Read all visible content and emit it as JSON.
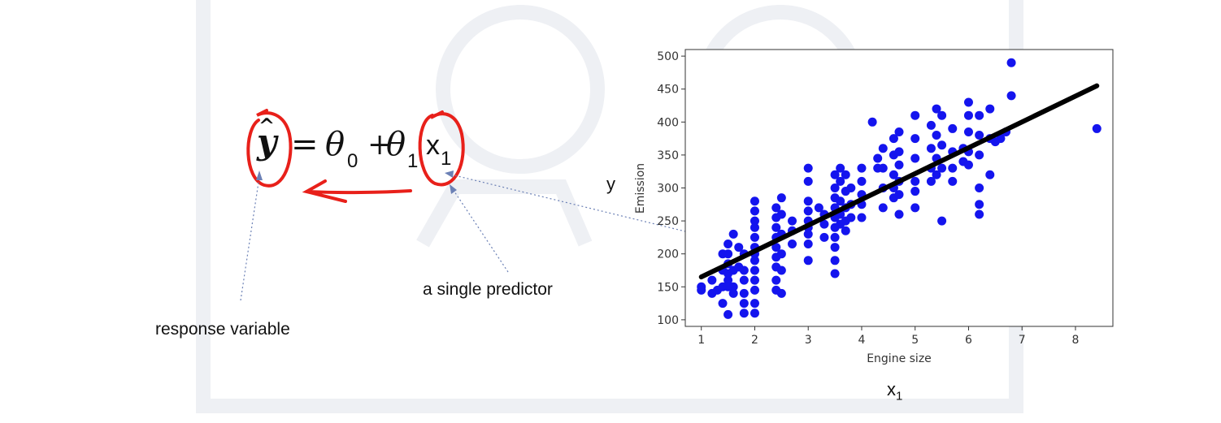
{
  "equation": {
    "lhs": "y",
    "equals": "=",
    "theta0": "θ",
    "theta0_sub": "0",
    "plus": "+",
    "theta1": "θ",
    "theta1_sub": "1",
    "x": "x",
    "x_sub": "1"
  },
  "annotations": {
    "response_variable": "response variable",
    "single_predictor": "a single predictor",
    "y_label": "y",
    "x_label": "x",
    "x_label_sub": "1"
  },
  "colors": {
    "marker_red": "#e8201a",
    "arrow_blue": "#6b80b5",
    "points": "#1414ee",
    "fit_line": "#000000",
    "watermark": "#eef0f4"
  },
  "chart_data": {
    "type": "scatter",
    "xlabel": "Engine size",
    "ylabel": "Emission",
    "xlim": [
      0.7,
      8.7
    ],
    "ylim": [
      90,
      510
    ],
    "xticks": [
      1,
      2,
      3,
      4,
      5,
      6,
      7,
      8
    ],
    "yticks": [
      100,
      150,
      200,
      250,
      300,
      350,
      400,
      450,
      500
    ],
    "points": [
      [
        1.0,
        150
      ],
      [
        1.0,
        145
      ],
      [
        1.2,
        160
      ],
      [
        1.2,
        140
      ],
      [
        1.3,
        145
      ],
      [
        1.4,
        175
      ],
      [
        1.4,
        150
      ],
      [
        1.4,
        125
      ],
      [
        1.4,
        200
      ],
      [
        1.5,
        200
      ],
      [
        1.5,
        185
      ],
      [
        1.5,
        170
      ],
      [
        1.5,
        160
      ],
      [
        1.5,
        150
      ],
      [
        1.5,
        108
      ],
      [
        1.5,
        215
      ],
      [
        1.6,
        175
      ],
      [
        1.6,
        150
      ],
      [
        1.6,
        230
      ],
      [
        1.6,
        140
      ],
      [
        1.7,
        180
      ],
      [
        1.7,
        210
      ],
      [
        1.8,
        200
      ],
      [
        1.8,
        175
      ],
      [
        1.8,
        160
      ],
      [
        1.8,
        140
      ],
      [
        1.8,
        125
      ],
      [
        1.8,
        110
      ],
      [
        2.0,
        280
      ],
      [
        2.0,
        265
      ],
      [
        2.0,
        250
      ],
      [
        2.0,
        240
      ],
      [
        2.0,
        225
      ],
      [
        2.0,
        210
      ],
      [
        2.0,
        200
      ],
      [
        2.0,
        190
      ],
      [
        2.0,
        175
      ],
      [
        2.0,
        160
      ],
      [
        2.0,
        145
      ],
      [
        2.0,
        125
      ],
      [
        2.0,
        110
      ],
      [
        2.4,
        270
      ],
      [
        2.4,
        255
      ],
      [
        2.4,
        240
      ],
      [
        2.4,
        225
      ],
      [
        2.4,
        210
      ],
      [
        2.4,
        195
      ],
      [
        2.4,
        180
      ],
      [
        2.4,
        160
      ],
      [
        2.4,
        145
      ],
      [
        2.5,
        285
      ],
      [
        2.5,
        260
      ],
      [
        2.5,
        230
      ],
      [
        2.5,
        200
      ],
      [
        2.5,
        175
      ],
      [
        2.5,
        140
      ],
      [
        2.7,
        250
      ],
      [
        2.7,
        235
      ],
      [
        2.7,
        215
      ],
      [
        3.0,
        330
      ],
      [
        3.0,
        310
      ],
      [
        3.0,
        280
      ],
      [
        3.0,
        265
      ],
      [
        3.0,
        250
      ],
      [
        3.0,
        240
      ],
      [
        3.0,
        230
      ],
      [
        3.0,
        215
      ],
      [
        3.0,
        190
      ],
      [
        3.2,
        270
      ],
      [
        3.3,
        260
      ],
      [
        3.3,
        245
      ],
      [
        3.3,
        225
      ],
      [
        3.5,
        320
      ],
      [
        3.5,
        300
      ],
      [
        3.5,
        285
      ],
      [
        3.5,
        270
      ],
      [
        3.5,
        255
      ],
      [
        3.5,
        240
      ],
      [
        3.5,
        225
      ],
      [
        3.5,
        210
      ],
      [
        3.5,
        190
      ],
      [
        3.5,
        170
      ],
      [
        3.6,
        330
      ],
      [
        3.6,
        310
      ],
      [
        3.6,
        280
      ],
      [
        3.6,
        260
      ],
      [
        3.6,
        245
      ],
      [
        3.7,
        320
      ],
      [
        3.7,
        295
      ],
      [
        3.7,
        270
      ],
      [
        3.7,
        250
      ],
      [
        3.7,
        235
      ],
      [
        3.8,
        300
      ],
      [
        3.8,
        275
      ],
      [
        3.8,
        255
      ],
      [
        4.0,
        330
      ],
      [
        4.0,
        310
      ],
      [
        4.0,
        290
      ],
      [
        4.0,
        275
      ],
      [
        4.0,
        255
      ],
      [
        4.2,
        400
      ],
      [
        4.3,
        345
      ],
      [
        4.3,
        330
      ],
      [
        4.4,
        360
      ],
      [
        4.4,
        330
      ],
      [
        4.4,
        300
      ],
      [
        4.4,
        270
      ],
      [
        4.6,
        375
      ],
      [
        4.6,
        350
      ],
      [
        4.6,
        320
      ],
      [
        4.6,
        300
      ],
      [
        4.6,
        285
      ],
      [
        4.7,
        385
      ],
      [
        4.7,
        355
      ],
      [
        4.7,
        335
      ],
      [
        4.7,
        310
      ],
      [
        4.7,
        290
      ],
      [
        4.7,
        260
      ],
      [
        5.0,
        410
      ],
      [
        5.0,
        375
      ],
      [
        5.0,
        345
      ],
      [
        5.0,
        310
      ],
      [
        5.0,
        295
      ],
      [
        5.0,
        270
      ],
      [
        5.3,
        395
      ],
      [
        5.3,
        360
      ],
      [
        5.3,
        330
      ],
      [
        5.3,
        310
      ],
      [
        5.4,
        420
      ],
      [
        5.4,
        380
      ],
      [
        5.4,
        345
      ],
      [
        5.4,
        320
      ],
      [
        5.5,
        410
      ],
      [
        5.5,
        365
      ],
      [
        5.5,
        330
      ],
      [
        5.5,
        250
      ],
      [
        5.7,
        390
      ],
      [
        5.7,
        355
      ],
      [
        5.7,
        330
      ],
      [
        5.7,
        310
      ],
      [
        5.9,
        360
      ],
      [
        5.9,
        340
      ],
      [
        6.0,
        430
      ],
      [
        6.0,
        410
      ],
      [
        6.0,
        385
      ],
      [
        6.0,
        355
      ],
      [
        6.0,
        335
      ],
      [
        6.2,
        410
      ],
      [
        6.2,
        380
      ],
      [
        6.2,
        350
      ],
      [
        6.2,
        300
      ],
      [
        6.2,
        275
      ],
      [
        6.2,
        260
      ],
      [
        6.4,
        420
      ],
      [
        6.4,
        375
      ],
      [
        6.4,
        320
      ],
      [
        6.5,
        370
      ],
      [
        6.6,
        375
      ],
      [
        6.7,
        385
      ],
      [
        6.8,
        490
      ],
      [
        6.8,
        440
      ],
      [
        8.4,
        390
      ]
    ],
    "fit_line": [
      [
        1.0,
        165
      ],
      [
        8.4,
        455
      ]
    ]
  }
}
